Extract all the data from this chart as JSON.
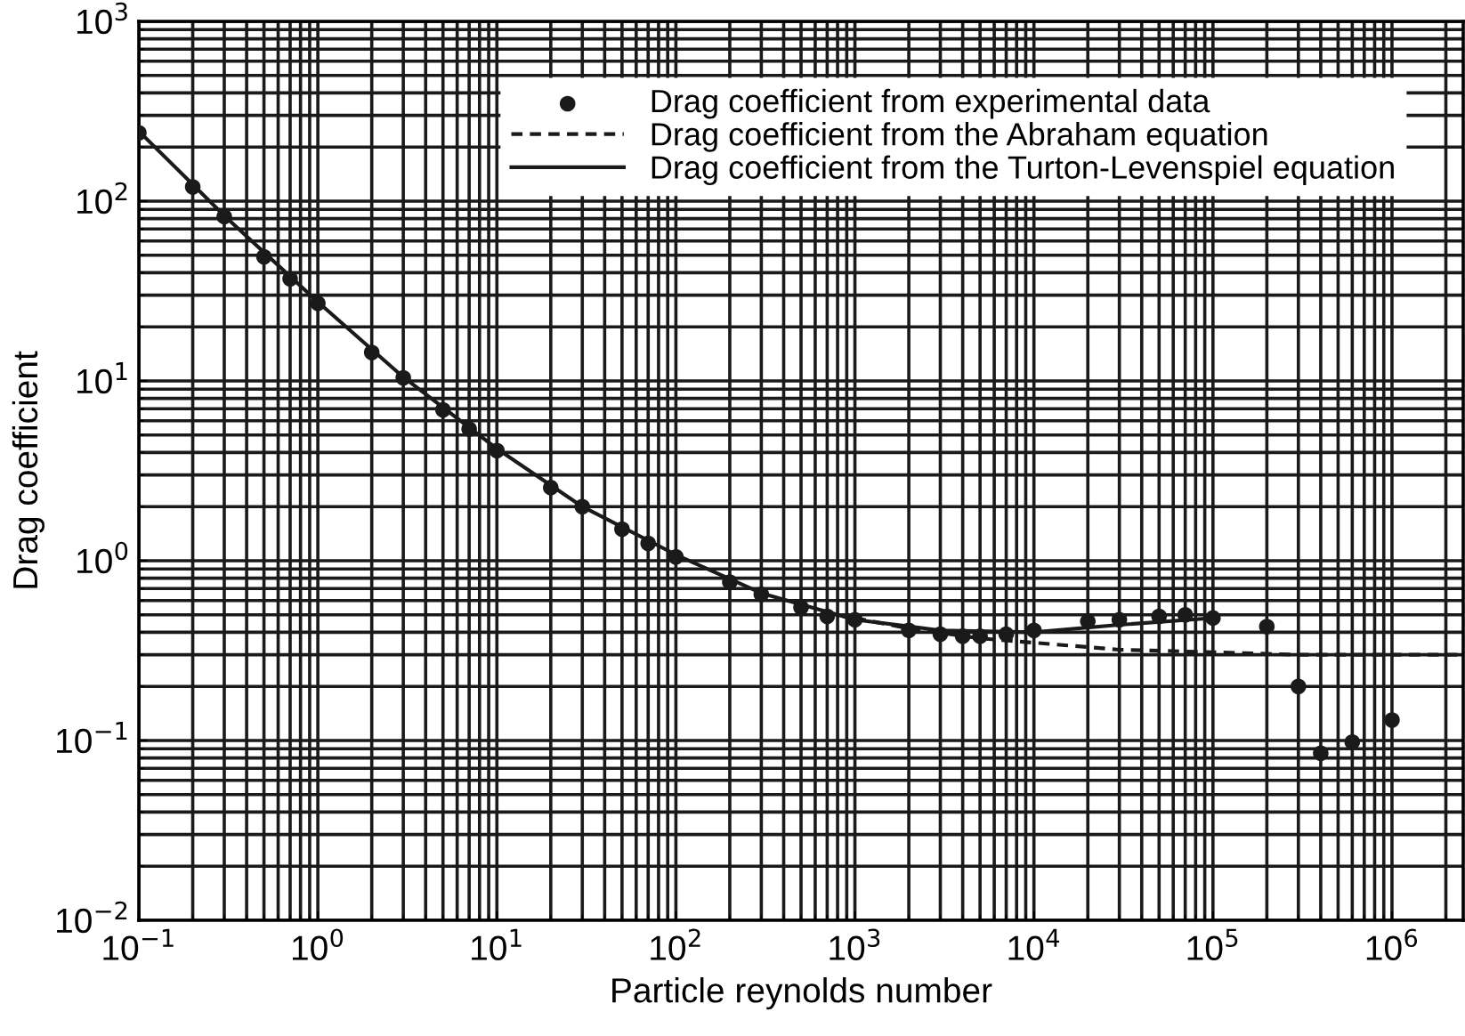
{
  "chart_data": {
    "type": "line",
    "xlabel": "Particle reynolds number",
    "ylabel": "Drag coefficient",
    "log": "xy",
    "grid": true,
    "legend": "top right",
    "xlim": [
      0.1,
      2500000
    ],
    "ylim": [
      0.01,
      1000
    ],
    "xticks": [
      {
        "value": 0.1,
        "label": "10$^{−1}$"
      },
      {
        "value": 1,
        "label": "10$^{0}$"
      },
      {
        "value": 10,
        "label": "10$^{1}$"
      },
      {
        "value": 100,
        "label": "10$^{2}$"
      },
      {
        "value": 1000,
        "label": "10$^{3}$"
      },
      {
        "value": 10000,
        "label": "10$^{4}$"
      },
      {
        "value": 100000,
        "label": "10$^{5}$"
      },
      {
        "value": 1000000,
        "label": "10$^{6}$"
      }
    ],
    "yticks": [
      {
        "value": 0.01,
        "label": "10$^{−2}$"
      },
      {
        "value": 0.1,
        "label": "10$^{−1}$"
      },
      {
        "value": 1,
        "label": "10$^{0}$"
      },
      {
        "value": 10,
        "label": "10$^{1}$"
      },
      {
        "value": 100,
        "label": "10$^{2}$"
      },
      {
        "value": 1000,
        "label": "10$^{3}$"
      }
    ],
    "series": [
      {
        "name": "Drag coefficient from experimental data",
        "type": "scatter",
        "marker": "circle",
        "color": "#1a1a1a",
        "x": [
          0.1,
          0.2,
          0.3,
          0.5,
          0.7,
          1,
          2,
          3,
          5,
          7,
          10,
          20,
          30,
          50,
          70,
          100,
          200,
          300,
          500,
          700,
          1000,
          2000,
          3000,
          4000,
          5000,
          7000,
          10000,
          20000,
          30000,
          50000,
          70000,
          100000,
          200000,
          300000,
          400000,
          600000,
          1000000
        ],
        "values": [
          240,
          120,
          82,
          49,
          37,
          27,
          14.4,
          10.4,
          6.9,
          5.4,
          4.1,
          2.55,
          2.0,
          1.5,
          1.25,
          1.05,
          0.76,
          0.65,
          0.55,
          0.49,
          0.47,
          0.41,
          0.39,
          0.38,
          0.38,
          0.39,
          0.41,
          0.46,
          0.47,
          0.49,
          0.5,
          0.48,
          0.43,
          0.2,
          0.085,
          0.098,
          0.13
        ]
      },
      {
        "name": "Drag coefficient from the Abraham equation",
        "line_style": "dashed",
        "color": "#1a1a1a",
        "x": [
          1000,
          2000,
          5000,
          10000,
          30000,
          100000,
          300000,
          1000000,
          2500000
        ],
        "values": [
          0.48,
          0.42,
          0.37,
          0.35,
          0.32,
          0.31,
          0.3,
          0.3,
          0.3
        ]
      },
      {
        "name": "Drag coefficient from the Turton-Levenspiel equation",
        "line_style": "solid",
        "color": "#1a1a1a",
        "x": [
          0.1,
          0.3,
          1,
          3,
          10,
          30,
          100,
          300,
          1000,
          3000,
          10000,
          30000,
          100000
        ],
        "values": [
          245,
          83,
          27.5,
          10.5,
          4.2,
          2.0,
          1.08,
          0.66,
          0.47,
          0.41,
          0.4,
          0.44,
          0.48
        ]
      }
    ]
  }
}
